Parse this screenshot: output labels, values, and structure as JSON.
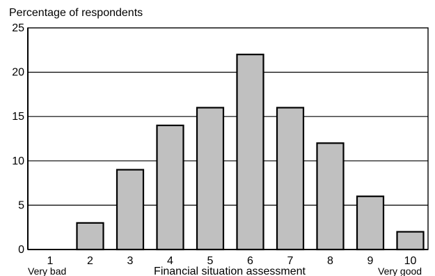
{
  "chart_data": {
    "type": "bar",
    "title": "",
    "xlabel": "Financial situation assessment",
    "ylabel": "Percentage of respondents",
    "categories": [
      "1",
      "2",
      "3",
      "4",
      "5",
      "6",
      "7",
      "8",
      "9",
      "10"
    ],
    "values": [
      0,
      3,
      9,
      14,
      16,
      22,
      16,
      12,
      6,
      2
    ],
    "ylim": [
      0,
      25
    ],
    "yticks": [
      0,
      5,
      10,
      15,
      20,
      25
    ],
    "grid": "horizontal",
    "endpoint_labels": {
      "low": "Very bad",
      "high": "Very good"
    },
    "colors": {
      "bar_fill": "#c0c0c0",
      "bar_stroke": "#000000",
      "grid": "#000000"
    }
  }
}
